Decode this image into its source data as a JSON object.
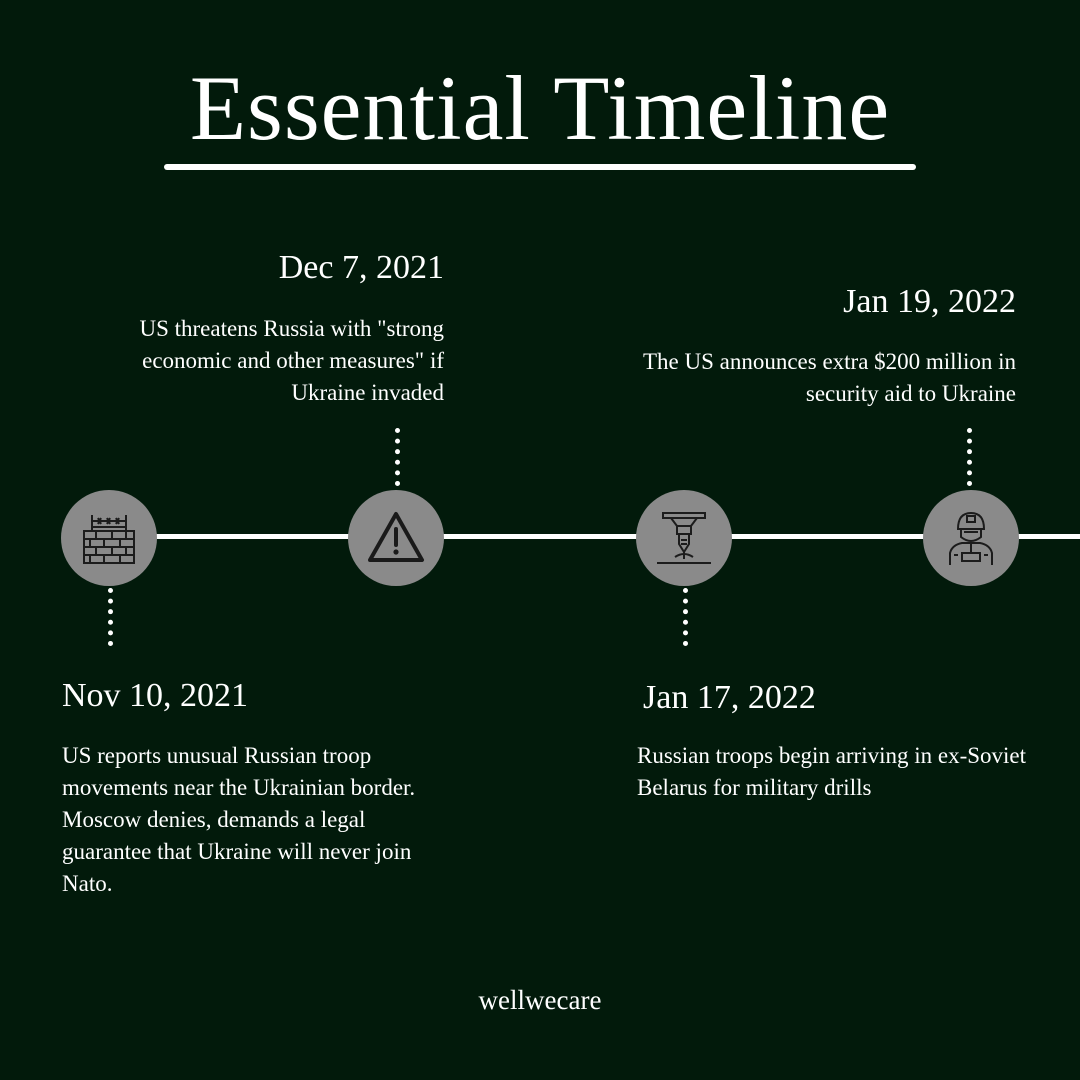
{
  "title": "Essential Timeline",
  "events": [
    {
      "date": "Nov 10, 2021",
      "text": "US reports unusual Russian troop movements near the Ukrainian border. Moscow denies, demands a legal guarantee that Ukraine will never join Nato.",
      "icon": "border-wall-icon"
    },
    {
      "date": "Dec 7, 2021",
      "text": "US threatens Russia with \"strong economic and other measures\" if Ukraine invaded",
      "icon": "warning-icon"
    },
    {
      "date": "Jan 17, 2022",
      "text": "Russian troops begin arriving in ex-Soviet Belarus for military drills",
      "icon": "missile-strike-icon"
    },
    {
      "date": "Jan 19, 2022",
      "text": "The US announces extra $200 million in security aid to Ukraine",
      "icon": "soldier-icon"
    }
  ],
  "footer": "wellwecare",
  "colors": {
    "background": "#021a0b",
    "node": "#8a8a8a",
    "line": "#ffffff",
    "text": "#ffffff"
  }
}
